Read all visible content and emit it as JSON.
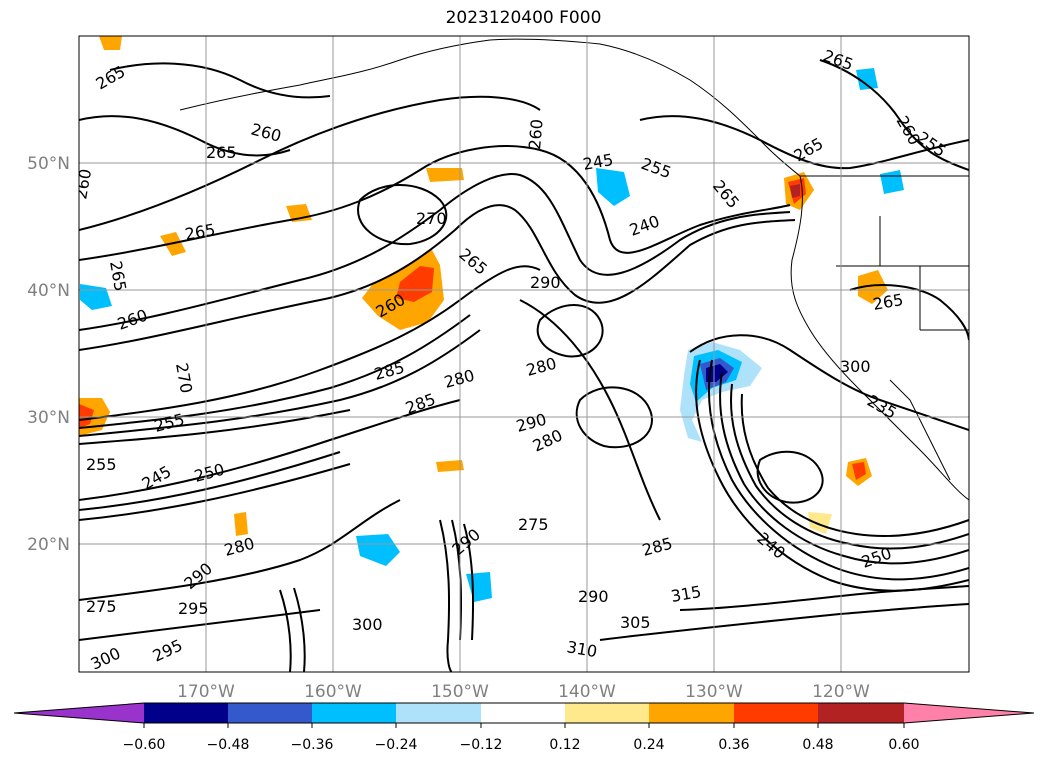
{
  "title": "2023120400 F000",
  "map": {
    "lat_labels": [
      "50°N",
      "40°N",
      "30°N",
      "20°N"
    ],
    "lon_labels": [
      "170°W",
      "160°W",
      "150°W",
      "140°W",
      "130°W",
      "120°W"
    ],
    "contour_labels": [
      {
        "text": "265"
      },
      {
        "text": "260"
      },
      {
        "text": "265"
      },
      {
        "text": "260"
      },
      {
        "text": "265"
      },
      {
        "text": "265"
      },
      {
        "text": "270"
      },
      {
        "text": "265"
      },
      {
        "text": "260"
      },
      {
        "text": "290"
      },
      {
        "text": "260"
      },
      {
        "text": "245"
      },
      {
        "text": "255"
      },
      {
        "text": "265"
      },
      {
        "text": "240"
      },
      {
        "text": "265"
      },
      {
        "text": "265"
      },
      {
        "text": "260"
      },
      {
        "text": "255"
      },
      {
        "text": "265"
      },
      {
        "text": "285"
      },
      {
        "text": "280"
      },
      {
        "text": "285"
      },
      {
        "text": "280"
      },
      {
        "text": "290"
      },
      {
        "text": "280"
      },
      {
        "text": "275"
      },
      {
        "text": "285"
      },
      {
        "text": "290"
      },
      {
        "text": "305"
      },
      {
        "text": "310"
      },
      {
        "text": "315"
      },
      {
        "text": "300"
      },
      {
        "text": "275"
      },
      {
        "text": "295"
      },
      {
        "text": "300"
      },
      {
        "text": "295"
      },
      {
        "text": "280"
      },
      {
        "text": "290"
      },
      {
        "text": "250"
      },
      {
        "text": "245"
      },
      {
        "text": "255"
      },
      {
        "text": "255"
      },
      {
        "text": "270"
      },
      {
        "text": "260"
      },
      {
        "text": "250"
      },
      {
        "text": "235"
      },
      {
        "text": "240"
      },
      {
        "text": "300"
      },
      {
        "text": "290"
      }
    ]
  },
  "colorbar": {
    "colors": [
      "#9933cc",
      "#00008b",
      "#3359cc",
      "#00bfff",
      "#aee2fa",
      "#ffffff",
      "#ffe98c",
      "#ffa500",
      "#ff3b00",
      "#b22222",
      "#ff80a8"
    ],
    "tick_labels": [
      "−0.60",
      "−0.48",
      "−0.36",
      "−0.24",
      "−0.12",
      "0.12",
      "0.24",
      "0.36",
      "0.48",
      "0.60"
    ]
  }
}
